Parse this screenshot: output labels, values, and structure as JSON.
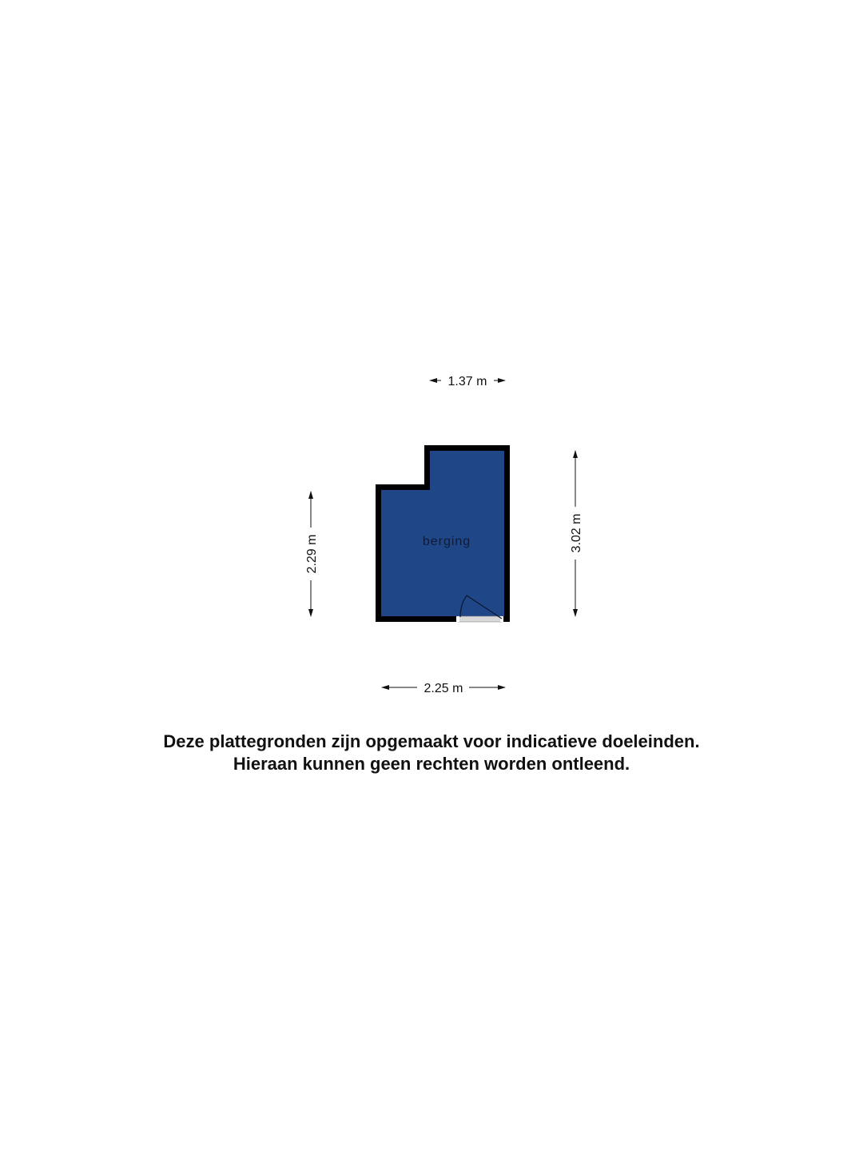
{
  "floorplan": {
    "room_label": "berging",
    "room_color": "#1f4788",
    "wall_color": "#000000",
    "dimensions": {
      "top": "1.37 m",
      "bottom": "2.25 m",
      "left": "2.29 m",
      "right": "3.02 m"
    }
  },
  "disclaimer": {
    "line1": "Deze plattegronden zijn opgemaakt voor indicatieve doeleinden.",
    "line2": "Hieraan kunnen geen rechten worden ontleend."
  }
}
